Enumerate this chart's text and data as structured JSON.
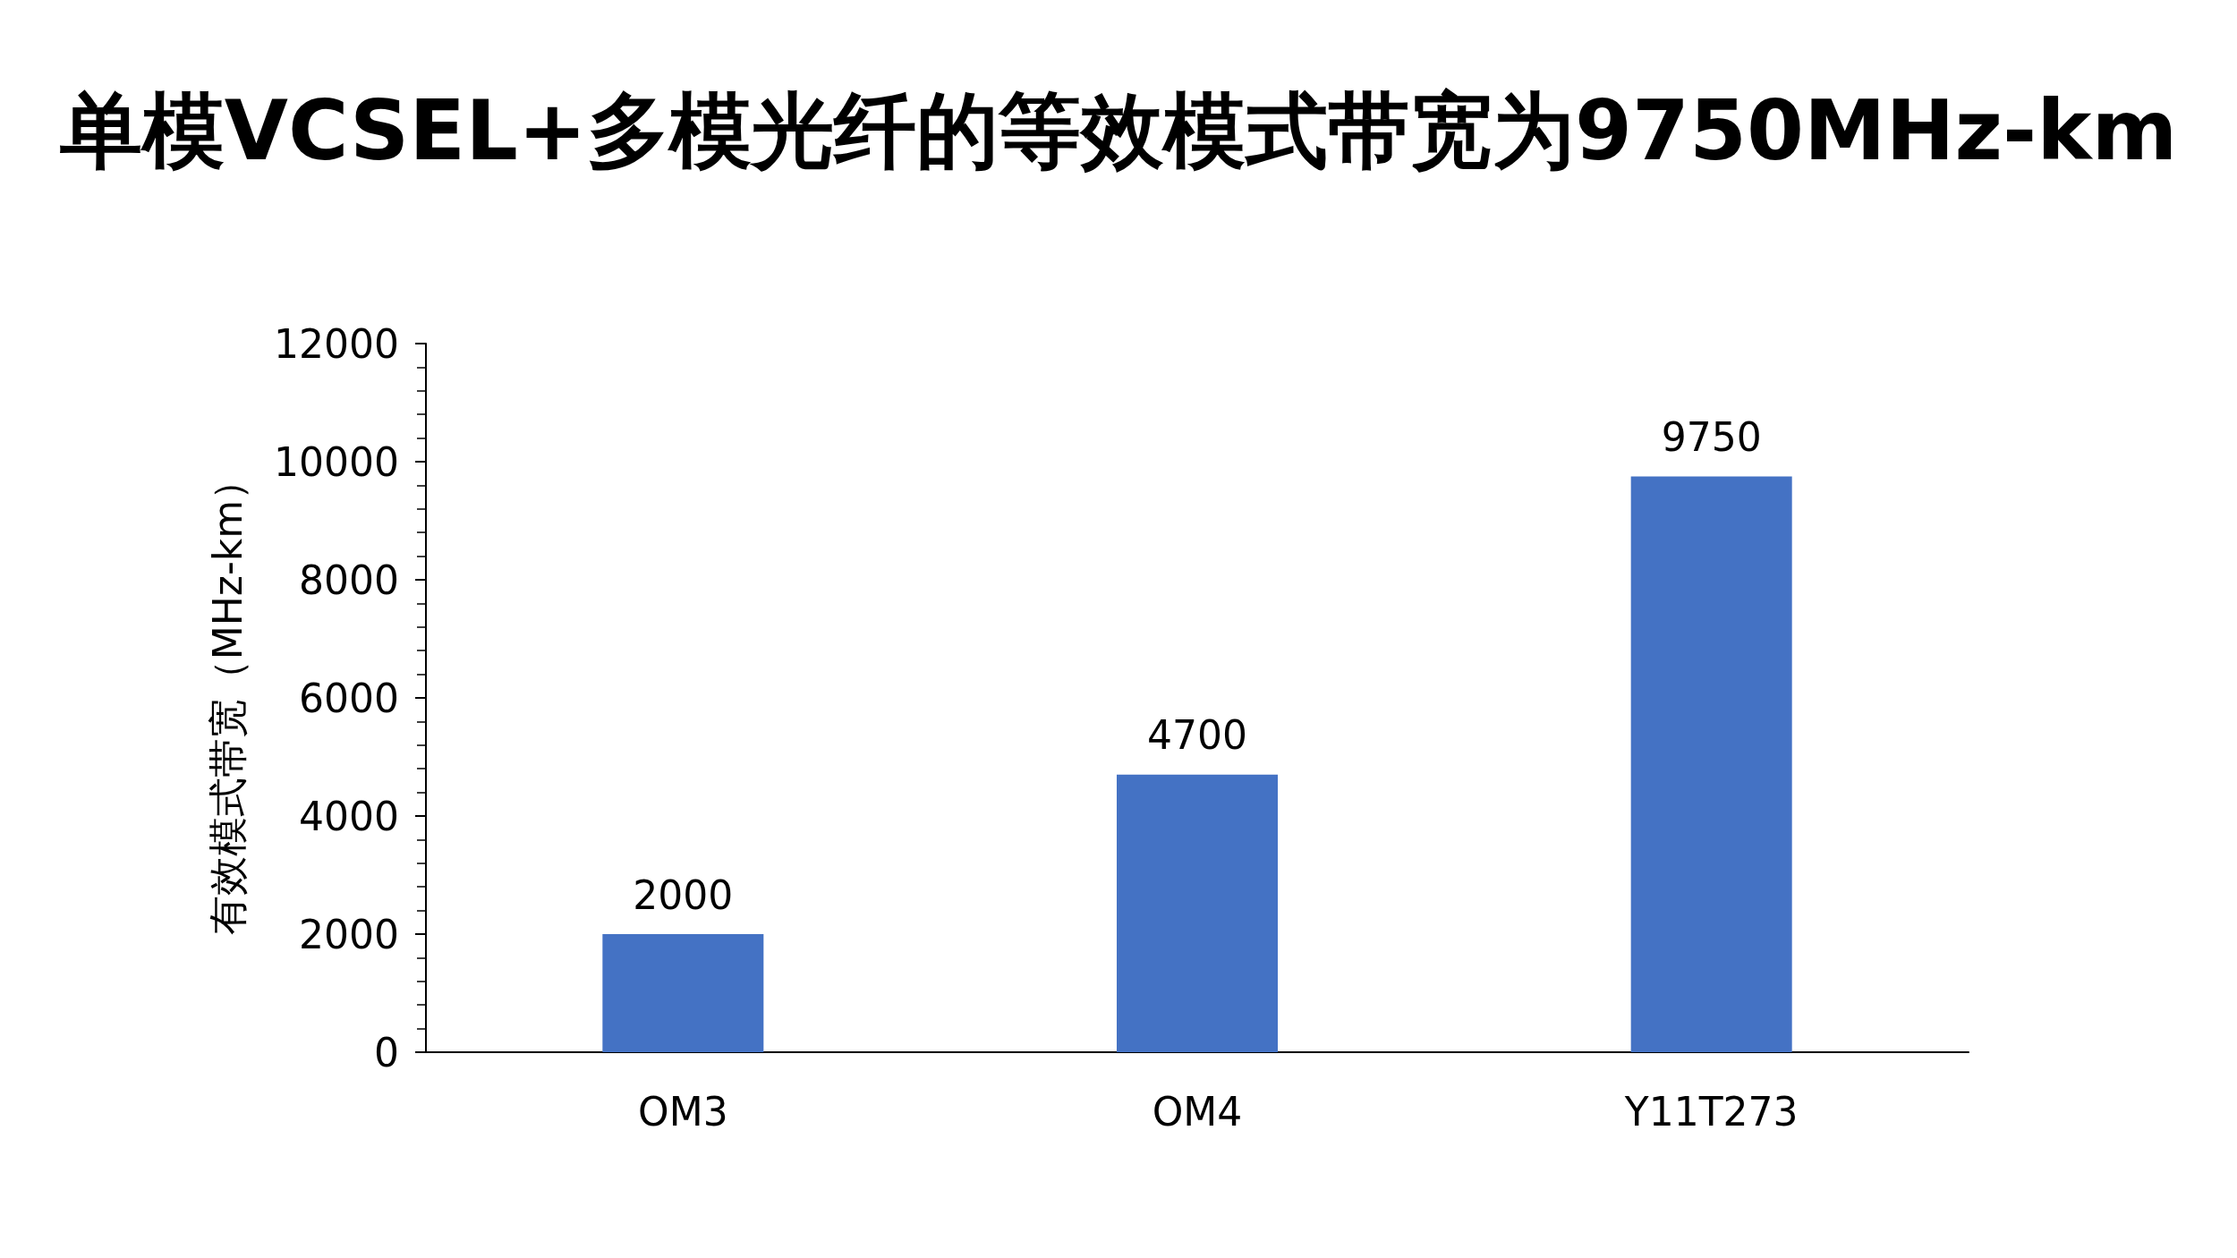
{
  "chart_data": {
    "type": "bar",
    "title": "单模VCSEL+多模光纤的等效模式带宽为9750MHz-km",
    "ylabel": "有效模式带宽（MHz-km）",
    "categories": [
      "OM3",
      "OM4",
      "Y11T273"
    ],
    "series": [
      {
        "color": "#4472c4",
        "values": [
          2000,
          4700,
          9750
        ]
      }
    ],
    "ylim": [
      0,
      12000
    ],
    "yticks": [
      0,
      2000,
      4000,
      6000,
      8000,
      10000,
      12000
    ],
    "grid": false,
    "data_labels": true
  }
}
